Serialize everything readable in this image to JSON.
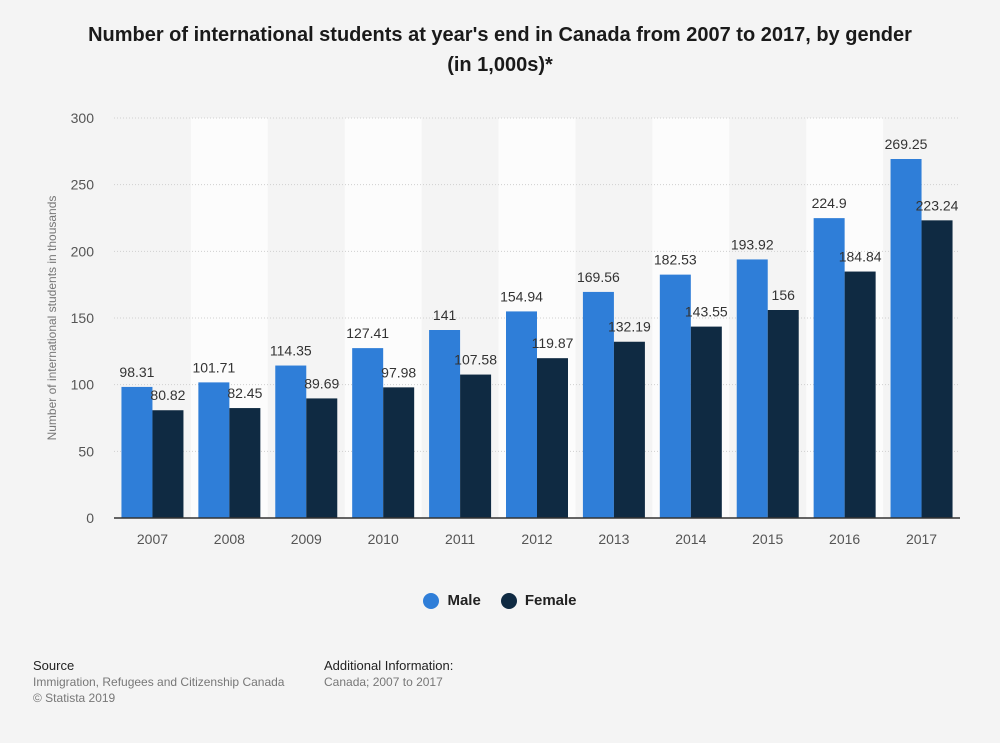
{
  "chart_data": {
    "type": "bar",
    "title": "Number of international students at year's end in Canada from 2007 to 2017, by gender (in 1,000s)*",
    "xlabel": "",
    "ylabel": "Number of international students in thousands",
    "ylim": [
      0,
      300
    ],
    "yticks": [
      0,
      50,
      100,
      150,
      200,
      250,
      300
    ],
    "categories": [
      "2007",
      "2008",
      "2009",
      "2010",
      "2011",
      "2012",
      "2013",
      "2014",
      "2015",
      "2016",
      "2017"
    ],
    "series": [
      {
        "name": "Male",
        "color": "#2f7ed8",
        "values": [
          98.31,
          101.71,
          114.35,
          127.41,
          141,
          154.94,
          169.56,
          182.53,
          193.92,
          224.9,
          269.25
        ]
      },
      {
        "name": "Female",
        "color": "#0f2a42",
        "values": [
          80.82,
          82.45,
          89.69,
          97.98,
          107.58,
          119.87,
          132.19,
          143.55,
          156,
          184.84,
          223.24
        ]
      }
    ],
    "grid": true,
    "legend": "bottom-center"
  },
  "footer": {
    "source_heading": "Source",
    "source_line1": "Immigration, Refugees and Citizenship Canada",
    "source_line2": "© Statista 2019",
    "info_heading": "Additional Information:",
    "info_line1": "Canada; 2007 to 2017"
  }
}
